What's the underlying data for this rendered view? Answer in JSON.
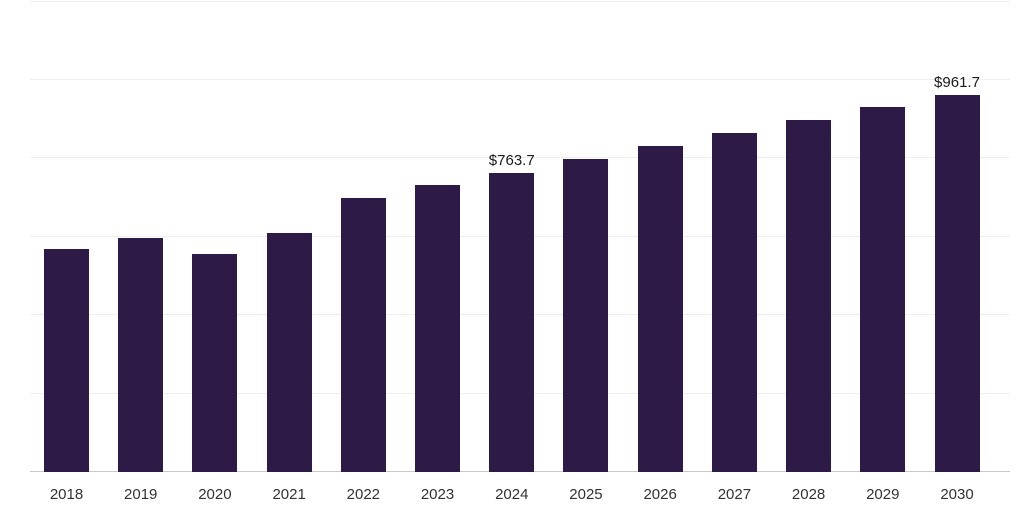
{
  "chart_data": {
    "type": "bar",
    "title": "",
    "xlabel": "",
    "ylabel": "",
    "categories": [
      "2018",
      "2019",
      "2020",
      "2021",
      "2022",
      "2023",
      "2024",
      "2025",
      "2026",
      "2027",
      "2028",
      "2029",
      "2030"
    ],
    "values": [
      570,
      598,
      556,
      610,
      700,
      732,
      763.7,
      798,
      832,
      866,
      898,
      930,
      961.7
    ],
    "data_labels": [
      "",
      "",
      "",
      "",
      "",
      "",
      "$763.7",
      "",
      "",
      "",
      "",
      "",
      "$961.7"
    ],
    "ylim": [
      0,
      1200
    ],
    "y_gridline_step": 200,
    "grid": true,
    "legend": "none",
    "bar_color": "#2e1a47",
    "axis_line_color": "#c9c9c9",
    "gridline_color": "#efefef",
    "label_color": "#1a1a1a",
    "tick_label_color": "#333333"
  }
}
